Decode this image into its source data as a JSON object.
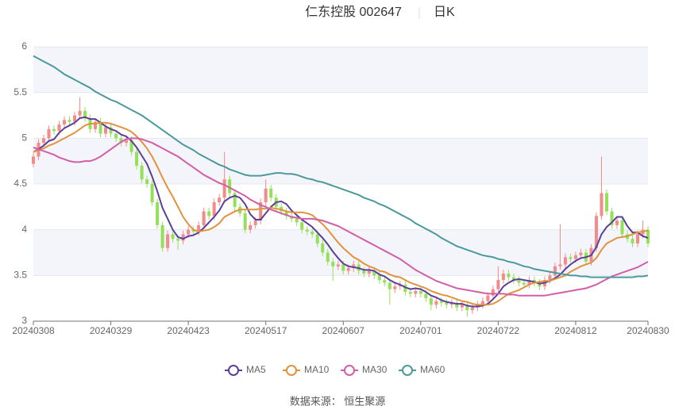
{
  "chart_data": {
    "type": "candlestick",
    "title": "仁东控股 002647",
    "subtitle": "日K",
    "source": "数据来源：  恒生聚源",
    "up_color": "#f28b8b",
    "down_color": "#95e05a",
    "ylim": [
      3,
      6
    ],
    "yticks": [
      3,
      3.5,
      4,
      4.5,
      5,
      5.5,
      6
    ],
    "grid": true,
    "legend": "bottom",
    "categories": [
      "20240308",
      null,
      null,
      null,
      null,
      null,
      null,
      null,
      null,
      null,
      null,
      null,
      null,
      null,
      null,
      "20240329",
      null,
      null,
      null,
      null,
      null,
      null,
      null,
      null,
      null,
      null,
      null,
      null,
      null,
      null,
      "20240423",
      null,
      null,
      null,
      null,
      null,
      null,
      null,
      null,
      null,
      null,
      null,
      null,
      null,
      null,
      "20240517",
      null,
      null,
      null,
      null,
      null,
      null,
      null,
      null,
      null,
      null,
      null,
      null,
      null,
      null,
      "20240607",
      null,
      null,
      null,
      null,
      null,
      null,
      null,
      null,
      null,
      null,
      null,
      null,
      null,
      null,
      "20240701",
      null,
      null,
      null,
      null,
      null,
      null,
      null,
      null,
      null,
      null,
      null,
      null,
      null,
      null,
      "20240722",
      null,
      null,
      null,
      null,
      null,
      null,
      null,
      null,
      null,
      null,
      null,
      null,
      null,
      null,
      "20240812",
      null,
      null,
      null,
      null,
      null,
      null,
      null,
      null,
      null,
      null,
      null,
      null,
      null,
      "20240830"
    ],
    "candles": [
      [
        4.72,
        4.84,
        4.68,
        4.8
      ],
      [
        4.8,
        4.99,
        4.76,
        4.95
      ],
      [
        4.95,
        5.04,
        4.91,
        5.0
      ],
      [
        5.0,
        5.14,
        4.96,
        5.1
      ],
      [
        5.1,
        5.14,
        5.04,
        5.08
      ],
      [
        5.08,
        5.19,
        5.04,
        5.15
      ],
      [
        5.15,
        5.24,
        5.11,
        5.2
      ],
      [
        5.2,
        5.24,
        5.14,
        5.18
      ],
      [
        5.18,
        5.29,
        5.14,
        5.25
      ],
      [
        5.25,
        5.45,
        5.21,
        5.3
      ],
      [
        5.3,
        5.34,
        5.18,
        5.22
      ],
      [
        5.22,
        5.26,
        5.06,
        5.1
      ],
      [
        5.1,
        5.22,
        5.06,
        5.18
      ],
      [
        5.18,
        5.22,
        5.01,
        5.05
      ],
      [
        5.05,
        5.16,
        5.01,
        5.12
      ],
      [
        5.12,
        5.16,
        5.01,
        5.05
      ],
      [
        5.05,
        5.09,
        4.96,
        5.0
      ],
      [
        5.0,
        5.04,
        4.91,
        4.95
      ],
      [
        4.95,
        5.02,
        4.91,
        4.98
      ],
      [
        4.98,
        5.02,
        4.81,
        4.85
      ],
      [
        4.85,
        4.89,
        4.66,
        4.7
      ],
      [
        4.7,
        4.74,
        4.51,
        4.55
      ],
      [
        4.55,
        4.59,
        4.46,
        4.5
      ],
      [
        4.5,
        4.54,
        4.26,
        4.3
      ],
      [
        4.3,
        4.34,
        4.01,
        4.05
      ],
      [
        4.05,
        4.09,
        3.76,
        3.8
      ],
      [
        3.8,
        3.99,
        3.76,
        3.95
      ],
      [
        3.95,
        3.99,
        3.86,
        3.9
      ],
      [
        3.9,
        3.94,
        3.78,
        3.88
      ],
      [
        3.88,
        3.99,
        3.84,
        3.95
      ],
      [
        3.95,
        4.04,
        3.91,
        4.0
      ],
      [
        4.0,
        4.04,
        3.94,
        3.98
      ],
      [
        3.98,
        4.09,
        3.94,
        4.05
      ],
      [
        4.05,
        4.24,
        4.01,
        4.2
      ],
      [
        4.2,
        4.24,
        4.11,
        4.15
      ],
      [
        4.15,
        4.34,
        4.11,
        4.3
      ],
      [
        4.3,
        4.39,
        4.26,
        4.35
      ],
      [
        4.35,
        4.85,
        4.31,
        4.55
      ],
      [
        4.55,
        4.59,
        4.36,
        4.4
      ],
      [
        4.4,
        4.44,
        4.21,
        4.25
      ],
      [
        4.25,
        4.29,
        4.14,
        4.18
      ],
      [
        4.18,
        4.22,
        3.96,
        4.0
      ],
      [
        4.0,
        4.09,
        3.96,
        4.05
      ],
      [
        4.05,
        4.14,
        4.01,
        4.1
      ],
      [
        4.1,
        4.34,
        4.06,
        4.3
      ],
      [
        4.3,
        4.55,
        4.26,
        4.45
      ],
      [
        4.45,
        4.49,
        4.31,
        4.35
      ],
      [
        4.35,
        4.39,
        4.21,
        4.25
      ],
      [
        4.25,
        4.29,
        4.16,
        4.2
      ],
      [
        4.2,
        4.24,
        4.11,
        4.15
      ],
      [
        4.15,
        4.19,
        4.08,
        4.12
      ],
      [
        4.12,
        4.16,
        4.04,
        4.08
      ],
      [
        4.08,
        4.12,
        3.96,
        4.0
      ],
      [
        4.0,
        4.04,
        3.94,
        3.98
      ],
      [
        3.98,
        4.02,
        3.91,
        3.95
      ],
      [
        3.95,
        3.99,
        3.81,
        3.85
      ],
      [
        3.85,
        3.89,
        3.71,
        3.75
      ],
      [
        3.75,
        3.79,
        3.61,
        3.65
      ],
      [
        3.65,
        3.69,
        3.44,
        3.6
      ],
      [
        3.6,
        3.66,
        3.56,
        3.62
      ],
      [
        3.62,
        3.66,
        3.51,
        3.55
      ],
      [
        3.55,
        3.62,
        3.51,
        3.58
      ],
      [
        3.58,
        3.66,
        3.54,
        3.62
      ],
      [
        3.62,
        3.66,
        3.51,
        3.55
      ],
      [
        3.55,
        3.59,
        3.48,
        3.52
      ],
      [
        3.52,
        3.59,
        3.48,
        3.55
      ],
      [
        3.55,
        3.59,
        3.46,
        3.5
      ],
      [
        3.5,
        3.54,
        3.41,
        3.45
      ],
      [
        3.45,
        3.49,
        3.38,
        3.42
      ],
      [
        3.42,
        3.46,
        3.18,
        3.35
      ],
      [
        3.35,
        3.42,
        3.31,
        3.38
      ],
      [
        3.38,
        3.44,
        3.34,
        3.4
      ],
      [
        3.4,
        3.44,
        3.28,
        3.32
      ],
      [
        3.32,
        3.36,
        3.26,
        3.3
      ],
      [
        3.3,
        3.37,
        3.26,
        3.33
      ],
      [
        3.33,
        3.37,
        3.26,
        3.3
      ],
      [
        3.3,
        3.34,
        3.21,
        3.25
      ],
      [
        3.25,
        3.29,
        3.12,
        3.18
      ],
      [
        3.18,
        3.26,
        3.14,
        3.22
      ],
      [
        3.22,
        3.26,
        3.16,
        3.2
      ],
      [
        3.2,
        3.24,
        3.14,
        3.18
      ],
      [
        3.18,
        3.24,
        3.14,
        3.2
      ],
      [
        3.2,
        3.24,
        3.11,
        3.15
      ],
      [
        3.15,
        3.22,
        3.11,
        3.18
      ],
      [
        3.18,
        3.22,
        3.05,
        3.12
      ],
      [
        3.12,
        3.19,
        3.08,
        3.15
      ],
      [
        3.15,
        3.22,
        3.11,
        3.18
      ],
      [
        3.18,
        3.26,
        3.14,
        3.22
      ],
      [
        3.22,
        3.32,
        3.18,
        3.28
      ],
      [
        3.28,
        3.39,
        3.24,
        3.35
      ],
      [
        3.35,
        3.6,
        3.31,
        3.45
      ],
      [
        3.45,
        3.56,
        3.41,
        3.52
      ],
      [
        3.52,
        3.56,
        3.44,
        3.48
      ],
      [
        3.48,
        3.52,
        3.41,
        3.45
      ],
      [
        3.45,
        3.49,
        3.38,
        3.42
      ],
      [
        3.42,
        3.46,
        3.36,
        3.4
      ],
      [
        3.4,
        3.49,
        3.36,
        3.45
      ],
      [
        3.45,
        3.49,
        3.38,
        3.42
      ],
      [
        3.42,
        3.46,
        3.34,
        3.38
      ],
      [
        3.38,
        3.49,
        3.34,
        3.45
      ],
      [
        3.45,
        3.54,
        3.41,
        3.5
      ],
      [
        3.5,
        3.64,
        3.46,
        3.6
      ],
      [
        3.6,
        4.06,
        3.56,
        3.62
      ],
      [
        3.62,
        3.74,
        3.58,
        3.7
      ],
      [
        3.7,
        3.74,
        3.64,
        3.68
      ],
      [
        3.68,
        3.76,
        3.64,
        3.72
      ],
      [
        3.72,
        3.79,
        3.68,
        3.75
      ],
      [
        3.75,
        3.79,
        3.61,
        3.65
      ],
      [
        3.65,
        3.84,
        3.61,
        3.8
      ],
      [
        3.8,
        4.19,
        3.76,
        4.15
      ],
      [
        4.15,
        4.8,
        4.11,
        4.4
      ],
      [
        4.4,
        4.44,
        4.16,
        4.2
      ],
      [
        4.2,
        4.24,
        4.01,
        4.05
      ],
      [
        4.05,
        4.14,
        4.01,
        4.1
      ],
      [
        4.1,
        4.14,
        3.91,
        3.95
      ],
      [
        3.95,
        3.99,
        3.86,
        3.9
      ],
      [
        3.9,
        3.94,
        3.81,
        3.85
      ],
      [
        3.85,
        3.99,
        3.81,
        3.95
      ],
      [
        3.95,
        4.1,
        3.91,
        4.0
      ],
      [
        4.0,
        4.04,
        3.81,
        3.85
      ]
    ],
    "series": [
      {
        "name": "MA5",
        "color": "#5b3f98",
        "values": [
          4.85,
          4.88,
          4.92,
          4.97,
          4.99,
          5.06,
          5.11,
          5.14,
          5.17,
          5.22,
          5.23,
          5.21,
          5.21,
          5.17,
          5.13,
          5.1,
          5.08,
          5.04,
          5.02,
          4.97,
          4.9,
          4.81,
          4.72,
          4.58,
          4.42,
          4.24,
          4.12,
          4.0,
          3.92,
          3.9,
          3.93,
          3.94,
          3.97,
          4.02,
          4.08,
          4.14,
          4.21,
          4.31,
          4.35,
          4.37,
          4.35,
          4.28,
          4.17,
          4.11,
          4.11,
          4.18,
          4.25,
          4.3,
          4.31,
          4.28,
          4.21,
          4.16,
          4.11,
          4.07,
          4.03,
          3.97,
          3.91,
          3.84,
          3.76,
          3.69,
          3.63,
          3.6,
          3.59,
          3.58,
          3.56,
          3.56,
          3.55,
          3.51,
          3.49,
          3.45,
          3.42,
          3.4,
          3.37,
          3.35,
          3.36,
          3.35,
          3.32,
          3.28,
          3.26,
          3.23,
          3.21,
          3.2,
          3.19,
          3.19,
          3.17,
          3.16,
          3.16,
          3.17,
          3.19,
          3.24,
          3.3,
          3.38,
          3.42,
          3.45,
          3.46,
          3.45,
          3.44,
          3.43,
          3.41,
          3.42,
          3.44,
          3.47,
          3.51,
          3.57,
          3.62,
          3.66,
          3.69,
          3.7,
          3.72,
          3.81,
          3.95,
          4.03,
          4.08,
          4.14,
          4.14,
          4.04,
          3.97,
          3.97,
          3.93,
          3.91
        ]
      },
      {
        "name": "MA10",
        "color": "#e0933f",
        "values": [
          4.85,
          4.87,
          4.89,
          4.92,
          4.94,
          4.97,
          5.0,
          5.03,
          5.06,
          5.1,
          5.14,
          5.16,
          5.16,
          5.17,
          5.17,
          5.16,
          5.14,
          5.12,
          5.1,
          5.07,
          5.02,
          4.96,
          4.89,
          4.8,
          4.69,
          4.57,
          4.46,
          4.36,
          4.25,
          4.14,
          4.06,
          4.0,
          3.98,
          3.99,
          4.0,
          4.03,
          4.07,
          4.14,
          4.17,
          4.2,
          4.22,
          4.22,
          4.22,
          4.22,
          4.23,
          4.23,
          4.24,
          4.23,
          4.22,
          4.2,
          4.19,
          4.19,
          4.19,
          4.18,
          4.16,
          4.11,
          4.06,
          4.0,
          3.93,
          3.86,
          3.8,
          3.75,
          3.7,
          3.67,
          3.63,
          3.6,
          3.58,
          3.55,
          3.54,
          3.51,
          3.49,
          3.48,
          3.45,
          3.42,
          3.4,
          3.38,
          3.36,
          3.33,
          3.31,
          3.29,
          3.28,
          3.26,
          3.24,
          3.22,
          3.21,
          3.19,
          3.18,
          3.18,
          3.18,
          3.19,
          3.22,
          3.26,
          3.3,
          3.32,
          3.34,
          3.37,
          3.4,
          3.42,
          3.43,
          3.44,
          3.44,
          3.46,
          3.48,
          3.5,
          3.54,
          3.57,
          3.6,
          3.62,
          3.64,
          3.69,
          3.78,
          3.85,
          3.88,
          3.91,
          3.92,
          3.93,
          3.95,
          3.97,
          3.98,
          3.99
        ]
      },
      {
        "name": "MA30",
        "color": "#d35ea8",
        "values": [
          4.9,
          4.88,
          4.86,
          4.84,
          4.82,
          4.79,
          4.77,
          4.75,
          4.74,
          4.74,
          4.75,
          4.75,
          4.77,
          4.8,
          4.84,
          4.88,
          4.92,
          4.96,
          4.99,
          5.0,
          5.0,
          4.99,
          4.97,
          4.95,
          4.92,
          4.89,
          4.86,
          4.83,
          4.8,
          4.76,
          4.72,
          4.68,
          4.64,
          4.6,
          4.57,
          4.54,
          4.51,
          4.49,
          4.46,
          4.43,
          4.4,
          4.37,
          4.33,
          4.3,
          4.27,
          4.25,
          4.22,
          4.2,
          4.18,
          4.16,
          4.14,
          4.13,
          4.12,
          4.12,
          4.12,
          4.11,
          4.1,
          4.08,
          4.06,
          4.04,
          4.01,
          3.98,
          3.95,
          3.92,
          3.89,
          3.86,
          3.83,
          3.8,
          3.77,
          3.74,
          3.71,
          3.68,
          3.64,
          3.6,
          3.56,
          3.53,
          3.5,
          3.47,
          3.44,
          3.42,
          3.4,
          3.38,
          3.36,
          3.35,
          3.34,
          3.33,
          3.32,
          3.31,
          3.3,
          3.3,
          3.3,
          3.3,
          3.29,
          3.29,
          3.28,
          3.28,
          3.28,
          3.28,
          3.28,
          3.28,
          3.29,
          3.3,
          3.31,
          3.32,
          3.33,
          3.34,
          3.35,
          3.36,
          3.38,
          3.4,
          3.43,
          3.46,
          3.49,
          3.51,
          3.53,
          3.55,
          3.57,
          3.59,
          3.62,
          3.65
        ]
      },
      {
        "name": "MA60",
        "color": "#4a9a9c",
        "values": [
          5.9,
          5.87,
          5.84,
          5.81,
          5.78,
          5.74,
          5.7,
          5.67,
          5.64,
          5.61,
          5.58,
          5.55,
          5.51,
          5.48,
          5.45,
          5.42,
          5.4,
          5.37,
          5.34,
          5.31,
          5.28,
          5.25,
          5.21,
          5.17,
          5.13,
          5.09,
          5.05,
          5.01,
          4.97,
          4.93,
          4.9,
          4.87,
          4.83,
          4.8,
          4.77,
          4.74,
          4.71,
          4.69,
          4.66,
          4.64,
          4.62,
          4.6,
          4.59,
          4.59,
          4.59,
          4.6,
          4.61,
          4.62,
          4.62,
          4.61,
          4.61,
          4.6,
          4.58,
          4.56,
          4.55,
          4.53,
          4.52,
          4.5,
          4.48,
          4.46,
          4.44,
          4.42,
          4.4,
          4.38,
          4.35,
          4.33,
          4.31,
          4.28,
          4.26,
          4.23,
          4.2,
          4.17,
          4.14,
          4.11,
          4.07,
          4.04,
          4.01,
          3.98,
          3.95,
          3.91,
          3.88,
          3.85,
          3.82,
          3.8,
          3.78,
          3.76,
          3.74,
          3.72,
          3.71,
          3.7,
          3.68,
          3.67,
          3.65,
          3.64,
          3.62,
          3.6,
          3.59,
          3.57,
          3.56,
          3.55,
          3.54,
          3.53,
          3.52,
          3.51,
          3.5,
          3.5,
          3.49,
          3.49,
          3.48,
          3.48,
          3.48,
          3.48,
          3.48,
          3.48,
          3.48,
          3.48,
          3.48,
          3.49,
          3.49,
          3.5
        ]
      }
    ]
  }
}
